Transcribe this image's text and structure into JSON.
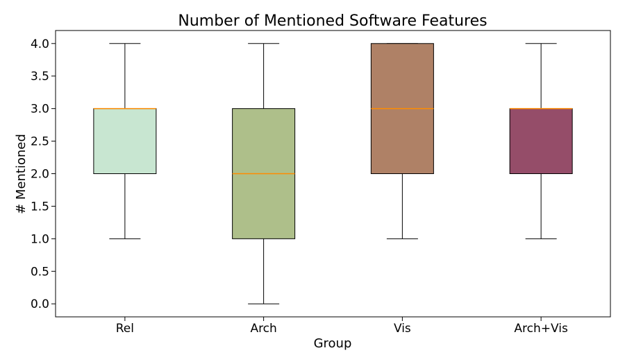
{
  "chart_data": {
    "type": "boxplot",
    "title": "Number of Mentioned Software Features",
    "xlabel": "Group",
    "ylabel": "# Mentioned",
    "ylim": [
      -0.2,
      4.2
    ],
    "yticks": [
      0.0,
      0.5,
      1.0,
      1.5,
      2.0,
      2.5,
      3.0,
      3.5,
      4.0
    ],
    "ytick_labels": [
      "0.0",
      "0.5",
      "1.0",
      "1.5",
      "2.0",
      "2.5",
      "3.0",
      "3.5",
      "4.0"
    ],
    "grid": false,
    "categories": [
      "Rel",
      "Arch",
      "Vis",
      "Arch+Vis"
    ],
    "boxes": [
      {
        "category": "Rel",
        "whisker_low": 1.0,
        "q1": 2.0,
        "median": 3.0,
        "q3": 3.0,
        "whisker_high": 4.0,
        "color": "#c8e6d1"
      },
      {
        "category": "Arch",
        "whisker_low": 0.0,
        "q1": 1.0,
        "median": 2.0,
        "q3": 3.0,
        "whisker_high": 4.0,
        "color": "#aebf8a"
      },
      {
        "category": "Vis",
        "whisker_low": 1.0,
        "q1": 2.0,
        "median": 3.0,
        "q3": 4.0,
        "whisker_high": 4.0,
        "color": "#af8166"
      },
      {
        "category": "Arch+Vis",
        "whisker_low": 1.0,
        "q1": 2.0,
        "median": 3.0,
        "q3": 3.0,
        "whisker_high": 4.0,
        "color": "#954d69"
      }
    ],
    "median_color": "#ff8c00"
  }
}
